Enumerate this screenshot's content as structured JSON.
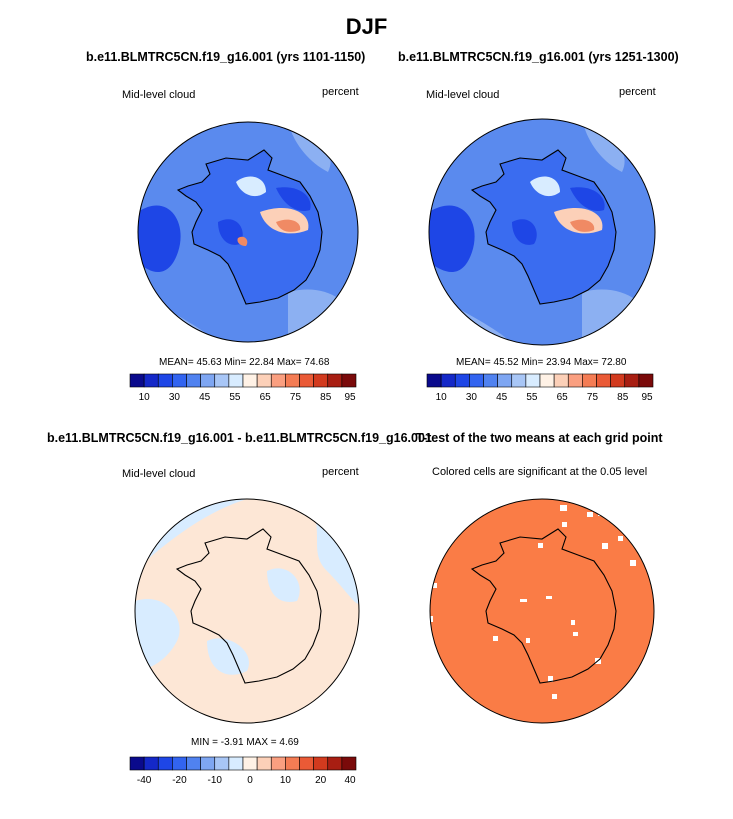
{
  "title": "DJF",
  "panels": [
    {
      "id": "case1",
      "title": "b.e11.BLMTRC5CN.f19_g16.001 (yrs 1101-1150)",
      "left_label": "Mid-level cloud",
      "right_label": "percent",
      "stats": {
        "mean_label": "MEAN=",
        "mean": "45.63",
        "min_label": "Min=",
        "min": "22.84",
        "max_label": "Max=",
        "max": "74.68"
      },
      "colorbar": {
        "colors": [
          "#0a0a8c",
          "#1428c8",
          "#1e46e6",
          "#3264f0",
          "#5082f0",
          "#7ea6f2",
          "#a8c6f6",
          "#d8ecff",
          "#fff2e6",
          "#fcd0b8",
          "#fa9f80",
          "#f47c54",
          "#ea5a36",
          "#d23a1e",
          "#a81e12",
          "#7a0a0a"
        ],
        "tick_labels": [
          "10",
          "30",
          "45",
          "55",
          "65",
          "75",
          "85",
          "95"
        ]
      }
    },
    {
      "id": "case2",
      "title": "b.e11.BLMTRC5CN.f19_g16.001 (yrs 1251-1300)",
      "left_label": "Mid-level cloud",
      "right_label": "percent",
      "stats": {
        "mean_label": "MEAN=",
        "mean": "45.52",
        "min_label": "Min=",
        "min": "23.94",
        "max_label": "Max=",
        "max": "72.80"
      },
      "colorbar": {
        "colors": [
          "#0a0a8c",
          "#1428c8",
          "#1e46e6",
          "#3264f0",
          "#5082f0",
          "#7ea6f2",
          "#a8c6f6",
          "#d8ecff",
          "#fff2e6",
          "#fcd0b8",
          "#fa9f80",
          "#f47c54",
          "#ea5a36",
          "#d23a1e",
          "#a81e12",
          "#7a0a0a"
        ],
        "tick_labels": [
          "10",
          "30",
          "45",
          "55",
          "65",
          "75",
          "85",
          "95"
        ]
      }
    },
    {
      "id": "diff",
      "title": "b.e11.BLMTRC5CN.f19_g16.001 - b.e11.BLMTRC5CN.f19_g16.001",
      "left_label": "Mid-level cloud",
      "right_label": "percent",
      "stats": {
        "min_label": "MIN =",
        "min": "-3.91",
        "max_label": "MAX =",
        "max": "4.69"
      },
      "colorbar": {
        "colors": [
          "#0a0a8c",
          "#1428c8",
          "#1e46e6",
          "#3264f0",
          "#5082f0",
          "#7ea6f2",
          "#a8c6f6",
          "#d8ecff",
          "#fff2e6",
          "#fcd0b8",
          "#fa9f80",
          "#f47c54",
          "#ea5a36",
          "#d23a1e",
          "#a81e12",
          "#7a0a0a"
        ],
        "tick_labels": [
          "-40",
          "-20",
          "-10",
          "0",
          "10",
          "20",
          "40"
        ]
      }
    },
    {
      "id": "ttest",
      "title": "T-test of the two means at each grid point",
      "subtitle": "Colored cells are significant at the 0.05 level",
      "fill_color": "#fa7c46"
    }
  ],
  "map_colors": {
    "ocean_mid": "#5a8aee",
    "ocean_light": "#8cb0f2",
    "deep_blue": "#1e46e6",
    "mid_blue": "#3a6cf0",
    "pale": "#d8ecff",
    "warm": "#fcd0b8",
    "hot": "#f08a64",
    "diff_blue": "#d8ecff",
    "diff_peach": "#fde7d6"
  }
}
